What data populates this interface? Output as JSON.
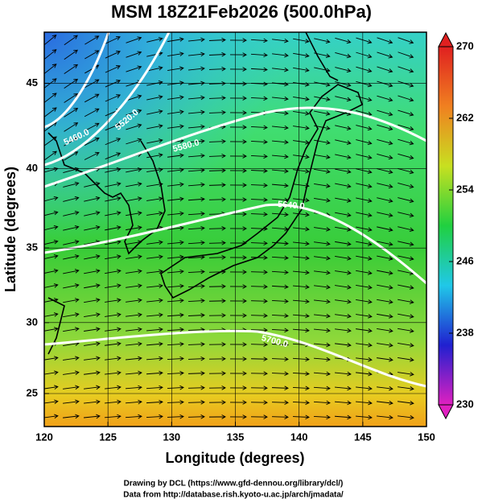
{
  "chart_data": {
    "type": "map",
    "title": "MSM 18Z21Feb2026 (500.0hPa)",
    "x_label": "Longitude (degrees)",
    "y_label": "Latitude  (degrees)",
    "xlim": [
      120,
      150
    ],
    "xticks": [
      120,
      125,
      130,
      135,
      140,
      145,
      150
    ],
    "ylim": [
      22.6,
      47.8
    ],
    "yticks": [
      25,
      30,
      35,
      40,
      45
    ],
    "contour_labels": [
      "5460.0",
      "5520.0",
      "5580.0",
      "5640.0",
      "5700.0"
    ],
    "colorbar": {
      "lim": [
        230,
        270
      ],
      "ticks": [
        230,
        238,
        246,
        254,
        262,
        270
      ],
      "colors": [
        "#e020c0",
        "#2020d0",
        "#20c8e8",
        "#20d040",
        "#c8e020",
        "#f08020",
        "#e02020"
      ]
    }
  },
  "footer": [
    "Drawing by DCL (https://www.gfd-dennou.org/library/dcl/)",
    "Data from http://database.rish.kyoto-u.ac.jp/arch/jmadata/"
  ]
}
